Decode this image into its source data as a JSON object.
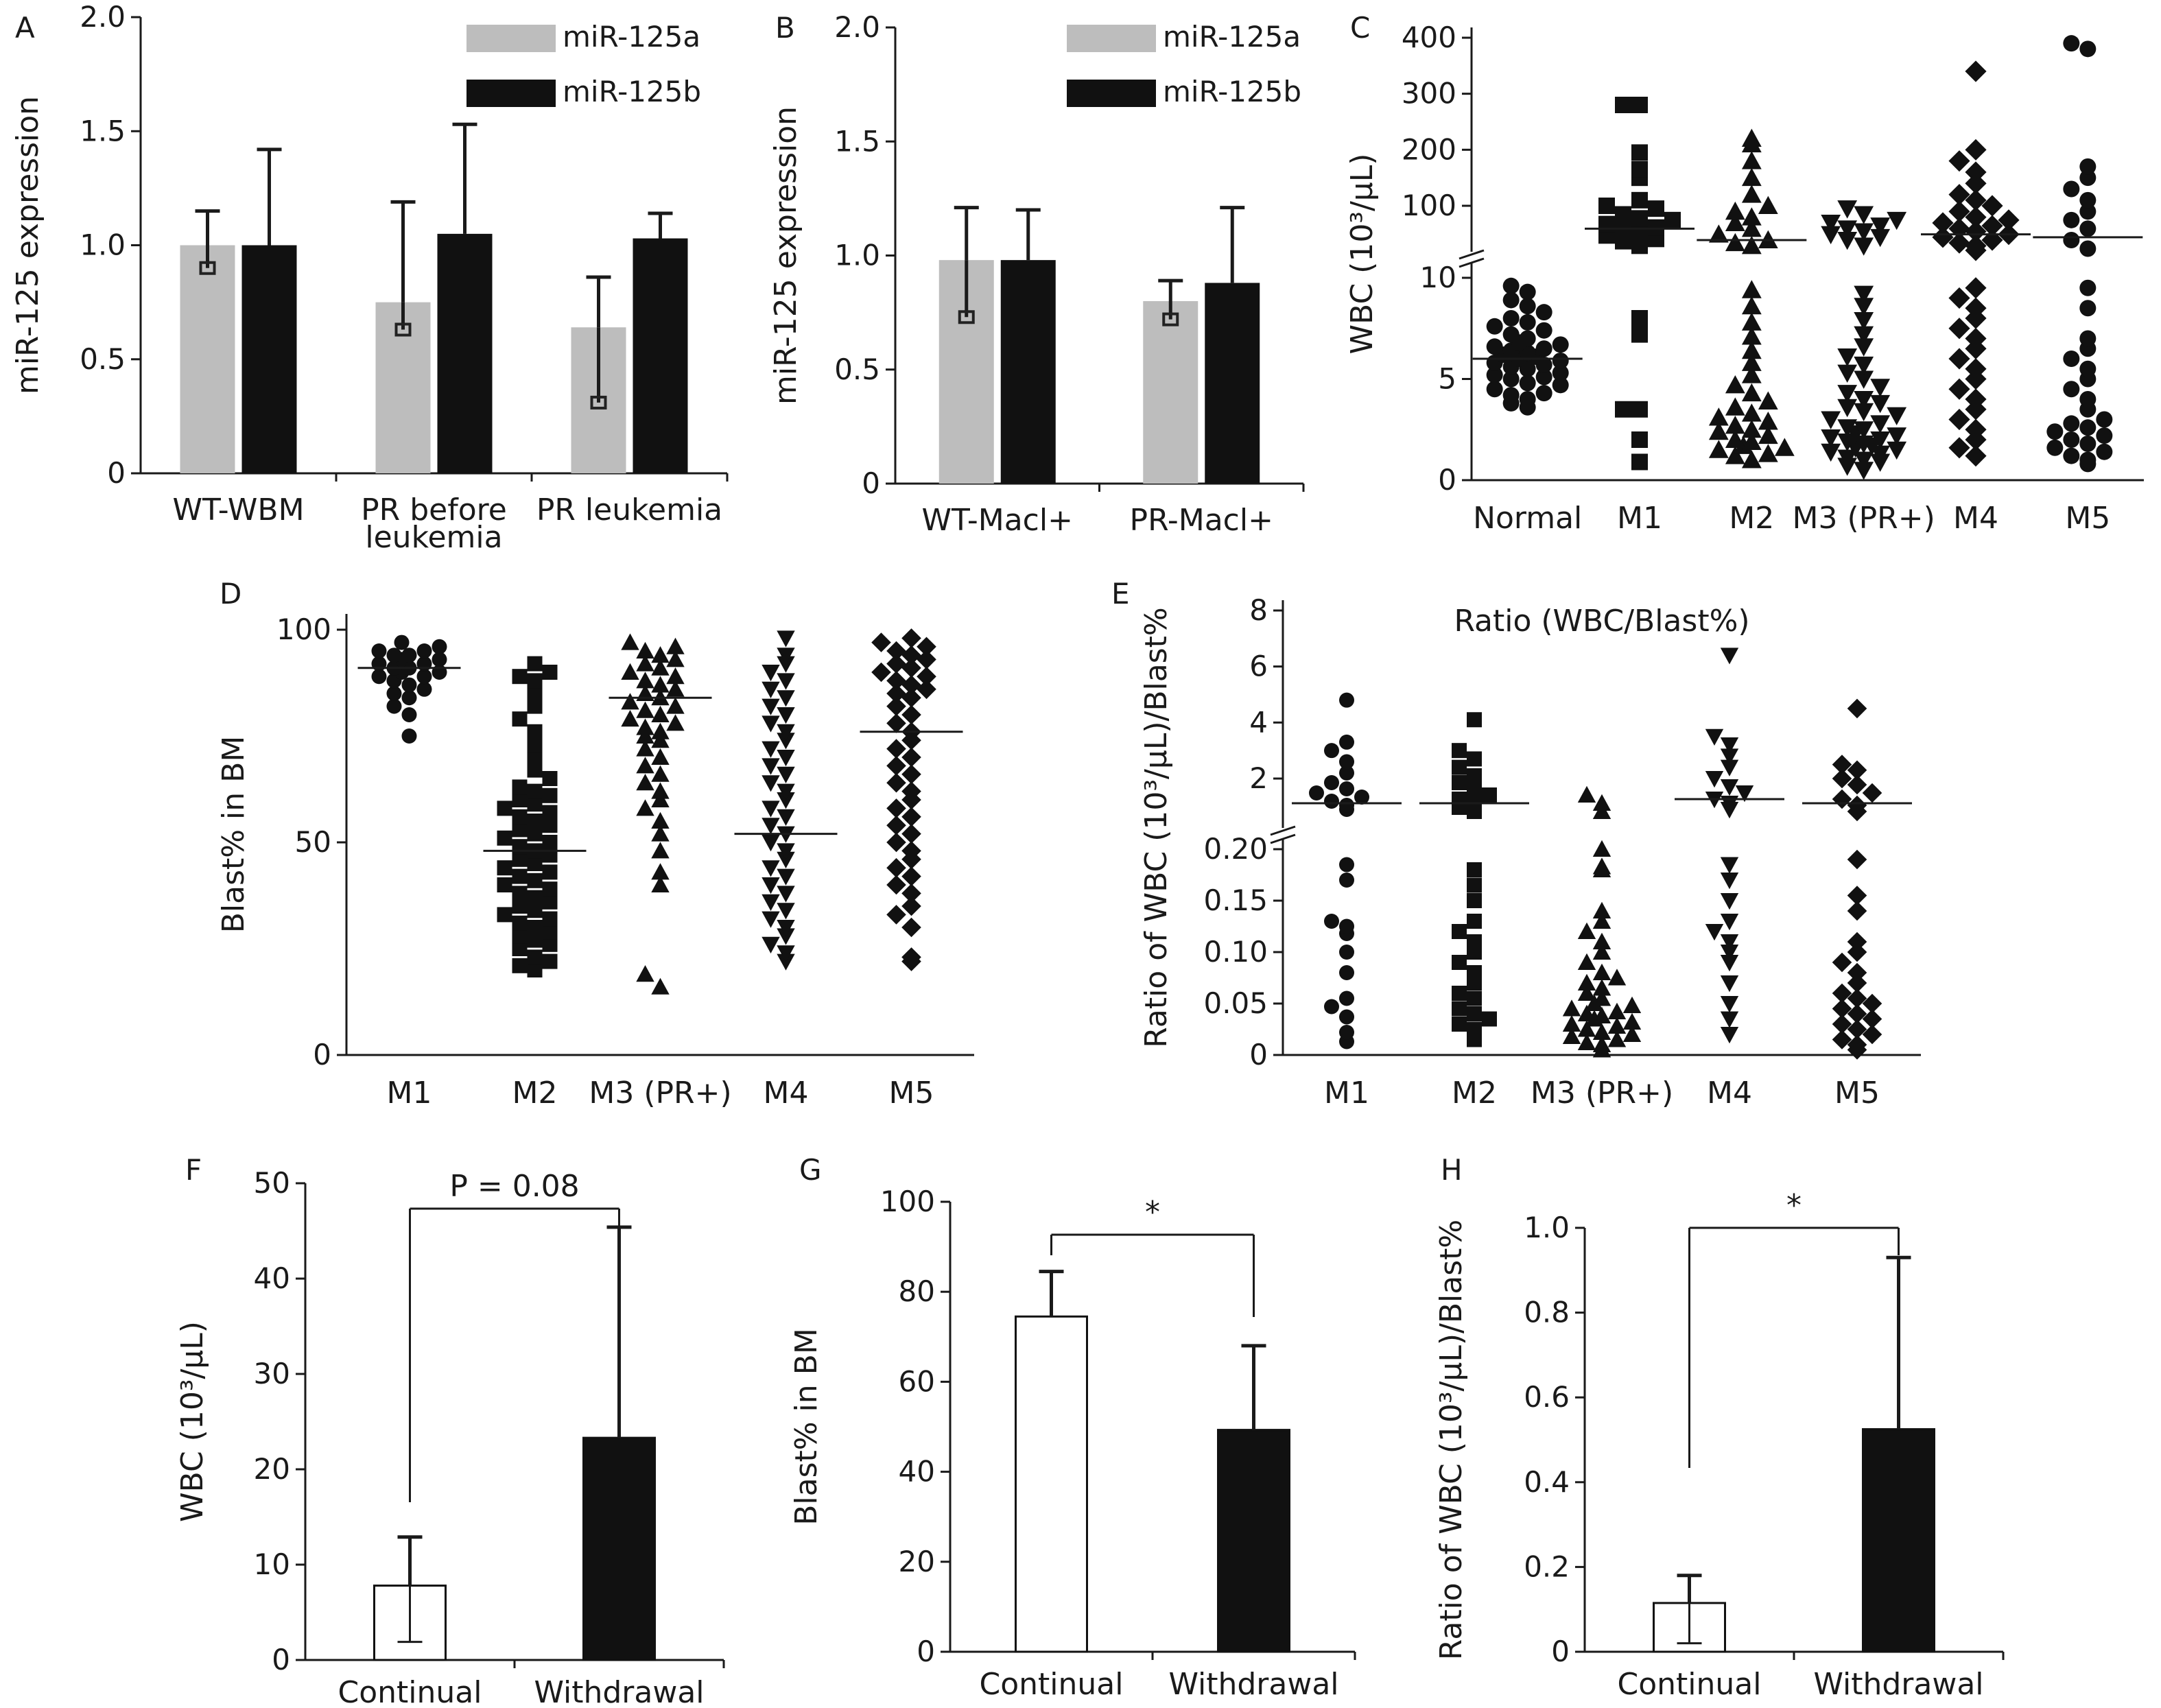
{
  "panel_letters": [
    "A",
    "B",
    "C",
    "D",
    "E",
    "F",
    "G",
    "H"
  ],
  "colors": {
    "miR_125a": "#bdbdbd",
    "miR_125b": "#111111",
    "continual": "#ffffff",
    "withdrawal": "#111111",
    "axis": "#1a1a1a"
  },
  "chart_data": [
    {
      "panel": "A",
      "type": "bar",
      "ylabel": "miR-125 expression",
      "xlabel": "",
      "ylim": [
        0,
        2.0
      ],
      "yticks": [
        "0",
        "0.5",
        "1.0",
        "1.5",
        "2.0"
      ],
      "categories": [
        "WT-WBM",
        "PR before leukemia",
        "PR leukemia"
      ],
      "series": [
        {
          "name": "miR-125a",
          "values": [
            1.0,
            0.75,
            0.64
          ],
          "error_upper": [
            1.15,
            1.19,
            0.86
          ],
          "error_lower": [
            0.9,
            0.63,
            0.31
          ]
        },
        {
          "name": "miR-125b",
          "values": [
            1.0,
            1.05,
            1.03
          ],
          "error_upper": [
            1.42,
            1.53,
            1.14
          ]
        }
      ],
      "legend": "top-right"
    },
    {
      "panel": "B",
      "type": "bar",
      "ylabel": "miR-125 expression",
      "xlabel": "",
      "ylim": [
        0,
        2.0
      ],
      "yticks": [
        "0",
        "0.5",
        "1.0",
        "1.5",
        "2.0"
      ],
      "categories": [
        "WT-Macl+",
        "PR-Macl+"
      ],
      "series": [
        {
          "name": "miR-125a",
          "values": [
            0.98,
            0.8
          ],
          "error_upper": [
            1.21,
            0.89
          ],
          "error_lower": [
            0.73,
            0.72
          ]
        },
        {
          "name": "miR-125b",
          "values": [
            0.98,
            0.88
          ],
          "error_upper": [
            1.2,
            1.21
          ]
        }
      ],
      "legend": "top-right"
    },
    {
      "panel": "C",
      "type": "scatter",
      "ylabel": "WBC (10³/µL)",
      "xlabel": "",
      "axis_break": "broken y-axis: linear 0–10 below, 10–400 above",
      "yticks": [
        "0",
        "5",
        "10",
        "100",
        "200",
        "300",
        "400"
      ],
      "categories": [
        "Normal",
        "M1",
        "M2",
        "M3 (PR+)",
        "M4",
        "M5"
      ],
      "markers": [
        "circle",
        "square",
        "triangle-up",
        "triangle-down",
        "diamond",
        "circle"
      ],
      "medians": [
        6.0,
        60,
        40,
        null,
        50,
        45
      ],
      "groups": [
        [
          3.6,
          3.8,
          4.0,
          4.2,
          4.3,
          4.5,
          4.7,
          4.8,
          5.0,
          5.1,
          5.2,
          5.3,
          5.5,
          5.6,
          5.7,
          5.8,
          5.9,
          6.0,
          6.1,
          6.2,
          6.3,
          6.4,
          6.5,
          6.6,
          6.7,
          6.8,
          7.0,
          7.2,
          7.4,
          7.6,
          7.8,
          8.0,
          8.3,
          8.6,
          8.9,
          9.3,
          9.6
        ],
        [
          0.9,
          2.0,
          3.5,
          3.5,
          7.2,
          8.0,
          30,
          38,
          42,
          48,
          52,
          58,
          62,
          68,
          75,
          78,
          85,
          95,
          100,
          110,
          150,
          165,
          195,
          280,
          280
        ],
        [
          1.0,
          1.2,
          1.3,
          1.5,
          1.6,
          1.7,
          1.9,
          2.0,
          2.2,
          2.4,
          2.5,
          2.7,
          2.9,
          3.1,
          3.3,
          3.6,
          3.9,
          4.3,
          4.7,
          5.2,
          5.8,
          6.4,
          7.1,
          7.8,
          8.6,
          9.4,
          30,
          35,
          40,
          50,
          60,
          70,
          80,
          90,
          100,
          120,
          150,
          180,
          210,
          220
        ],
        [
          0.5,
          0.7,
          0.9,
          1.0,
          1.1,
          1.3,
          1.4,
          1.5,
          1.6,
          1.7,
          1.8,
          1.9,
          2.0,
          2.1,
          2.2,
          2.3,
          2.5,
          2.6,
          2.8,
          3.0,
          3.2,
          3.4,
          3.6,
          3.8,
          4.0,
          4.3,
          4.6,
          5.0,
          5.3,
          5.7,
          6.1,
          6.6,
          7.2,
          7.9,
          8.6,
          9.2,
          30,
          40,
          45,
          50,
          55,
          60,
          65,
          70,
          75,
          85,
          95
        ],
        [
          1.2,
          1.6,
          2.0,
          2.5,
          3.0,
          3.5,
          4.0,
          4.5,
          5.0,
          5.5,
          6.0,
          6.5,
          7.0,
          7.5,
          8.0,
          8.5,
          9.0,
          9.5,
          22,
          30,
          35,
          40,
          45,
          50,
          55,
          60,
          65,
          70,
          75,
          80,
          90,
          100,
          110,
          120,
          140,
          160,
          180,
          200,
          340
        ],
        [
          0.8,
          1.0,
          1.2,
          1.4,
          1.6,
          1.8,
          2.0,
          2.2,
          2.4,
          2.6,
          2.8,
          3.0,
          3.5,
          4.0,
          4.5,
          5.0,
          5.5,
          6.0,
          6.5,
          7.0,
          8.5,
          9.5,
          25,
          40,
          60,
          75,
          90,
          110,
          130,
          150,
          170,
          380,
          390
        ]
      ]
    },
    {
      "panel": "D",
      "type": "scatter",
      "ylabel": "Blast% in BM",
      "xlabel": "",
      "ylim": [
        0,
        100
      ],
      "yticks": [
        "0",
        "50",
        "100"
      ],
      "categories": [
        "M1",
        "M2",
        "M3 (PR+)",
        "M4",
        "M5"
      ],
      "markers": [
        "circle",
        "square",
        "triangle-up",
        "triangle-down",
        "diamond"
      ],
      "medians": [
        91,
        48,
        84,
        52,
        76
      ],
      "groups": [
        [
          75,
          80,
          82,
          84,
          85,
          86,
          87,
          88,
          89,
          89,
          90,
          90,
          91,
          91,
          92,
          92,
          93,
          93,
          94,
          94,
          95,
          95,
          96,
          97
        ],
        [
          20,
          21,
          22,
          23,
          25,
          26,
          27,
          28,
          29,
          30,
          31,
          32,
          33,
          34,
          35,
          36,
          37,
          38,
          39,
          40,
          41,
          42,
          43,
          44,
          45,
          46,
          47,
          48,
          49,
          50,
          51,
          52,
          53,
          54,
          55,
          56,
          57,
          58,
          59,
          60,
          61,
          62,
          63,
          65,
          67,
          70,
          73,
          76,
          79,
          82,
          85,
          88,
          89,
          90,
          92
        ],
        [
          16,
          19,
          40,
          43,
          48,
          52,
          55,
          58,
          60,
          62,
          64,
          66,
          68,
          70,
          72,
          74,
          75,
          76,
          77,
          78,
          79,
          80,
          81,
          82,
          83,
          84,
          85,
          86,
          87,
          88,
          89,
          90,
          91,
          92,
          93,
          94,
          95,
          96,
          97
        ],
        [
          22,
          24,
          26,
          28,
          30,
          32,
          34,
          36,
          38,
          40,
          42,
          44,
          46,
          48,
          50,
          52,
          54,
          56,
          58,
          60,
          62,
          64,
          66,
          68,
          70,
          72,
          74,
          76,
          78,
          80,
          82,
          84,
          86,
          88,
          90,
          92,
          94,
          98
        ],
        [
          22,
          23,
          30,
          33,
          35,
          38,
          40,
          42,
          44,
          46,
          48,
          50,
          52,
          54,
          56,
          58,
          60,
          62,
          64,
          66,
          68,
          70,
          72,
          74,
          76,
          78,
          80,
          82,
          84,
          85,
          86,
          87,
          88,
          89,
          90,
          91,
          92,
          93,
          94,
          95,
          96,
          97,
          98
        ]
      ]
    },
    {
      "panel": "E",
      "type": "scatter",
      "title": "Ratio (WBC/Blast%)",
      "ylabel": "Ratio of WBC (10³/µL)/Blast%",
      "xlabel": "",
      "axis_break": "broken y-axis: linear 0–0.20 below, 0–8 above",
      "yticks": [
        "0",
        "0.05",
        "0.10",
        "0.15",
        "0.20",
        "2",
        "4",
        "6",
        "8"
      ],
      "categories": [
        "M1",
        "M2",
        "M3 (PR+)",
        "M4",
        "M5"
      ],
      "markers": [
        "circle",
        "square",
        "triangle-up",
        "triangle-down",
        "diamond"
      ],
      "medians": [
        0.8,
        0.8,
        null,
        1.0,
        0.8
      ],
      "groups": [
        [
          0.013,
          0.022,
          0.037,
          0.047,
          0.055,
          0.08,
          0.1,
          0.118,
          0.125,
          0.13,
          0.17,
          0.185,
          0.5,
          0.7,
          0.9,
          1.1,
          1.3,
          1.5,
          1.8,
          2.2,
          2.6,
          3.0,
          3.3,
          4.8
        ],
        [
          0.015,
          0.025,
          0.03,
          0.035,
          0.04,
          0.045,
          0.055,
          0.06,
          0.07,
          0.08,
          0.09,
          0.1,
          0.11,
          0.12,
          0.13,
          0.15,
          0.165,
          0.18,
          0.4,
          0.6,
          0.8,
          1.0,
          1.2,
          1.5,
          1.8,
          2.1,
          2.4,
          2.7,
          3.0,
          4.1
        ],
        [
          0.005,
          0.01,
          0.012,
          0.015,
          0.018,
          0.02,
          0.022,
          0.025,
          0.028,
          0.03,
          0.032,
          0.035,
          0.038,
          0.04,
          0.042,
          0.045,
          0.048,
          0.05,
          0.055,
          0.06,
          0.065,
          0.07,
          0.075,
          0.08,
          0.09,
          0.1,
          0.11,
          0.12,
          0.13,
          0.14,
          0.18,
          0.183,
          0.2,
          0.4,
          0.8,
          1.2
        ],
        [
          0.02,
          0.035,
          0.05,
          0.07,
          0.09,
          0.1,
          0.11,
          0.12,
          0.13,
          0.15,
          0.17,
          0.185,
          0.5,
          0.8,
          1.0,
          1.3,
          1.6,
          2.0,
          2.4,
          2.8,
          3.2,
          3.5,
          6.4
        ],
        [
          0.005,
          0.01,
          0.015,
          0.02,
          0.025,
          0.03,
          0.035,
          0.04,
          0.045,
          0.05,
          0.055,
          0.06,
          0.07,
          0.08,
          0.09,
          0.1,
          0.11,
          0.14,
          0.155,
          0.19,
          0.4,
          0.7,
          1.0,
          1.3,
          1.7,
          2.0,
          2.3,
          2.5,
          4.5
        ]
      ]
    },
    {
      "panel": "F",
      "type": "bar",
      "ylabel": "WBC (10³/µL)",
      "xlabel": "",
      "ylim": [
        0,
        50
      ],
      "yticks": [
        "0",
        "10",
        "20",
        "30",
        "40",
        "50"
      ],
      "categories": [
        "Continual",
        "Withdrawal"
      ],
      "values": [
        7.8,
        23.3
      ],
      "error_upper": [
        12.9,
        45.4
      ],
      "error_lower": [
        1.9,
        null
      ],
      "annotation": "P = 0.08"
    },
    {
      "panel": "G",
      "type": "bar",
      "ylabel": "Blast% in BM",
      "xlabel": "",
      "ylim": [
        0,
        100
      ],
      "yticks": [
        "0",
        "20",
        "40",
        "60",
        "80",
        "100"
      ],
      "categories": [
        "Continual",
        "Withdrawal"
      ],
      "values": [
        74.5,
        49.3
      ],
      "error_upper": [
        84.5,
        68
      ],
      "error_lower": [
        null,
        null
      ],
      "annotation": "*"
    },
    {
      "panel": "H",
      "type": "bar",
      "ylabel": "Ratio of WBC (10³/µL)/Blast%",
      "xlabel": "",
      "ylim": [
        0,
        1.0
      ],
      "yticks": [
        "0",
        "0.2",
        "0.4",
        "0.6",
        "0.8",
        "1.0"
      ],
      "categories": [
        "Continual",
        "Withdrawal"
      ],
      "values": [
        0.115,
        0.525
      ],
      "error_upper": [
        0.18,
        0.93
      ],
      "error_lower": [
        0.02,
        null
      ],
      "annotation": "*"
    }
  ]
}
